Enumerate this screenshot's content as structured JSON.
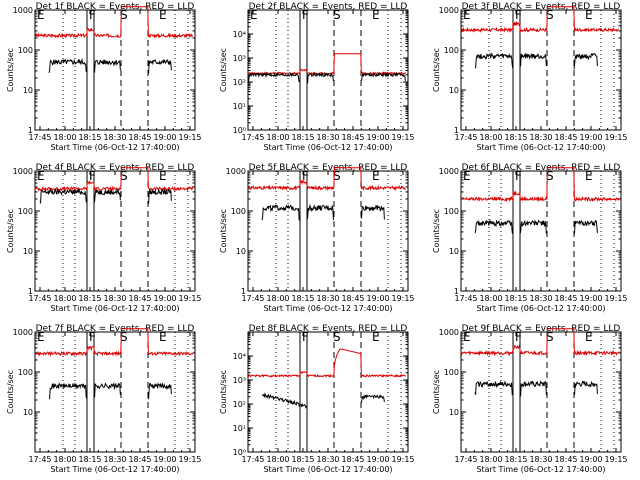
{
  "chart_data": [
    {
      "type": "line",
      "title": "Det 1f BLACK = Events, RED = LLD",
      "xlabel": "Start Time (06-Oct-12 17:40:00)",
      "ylabel": "Counts/sec",
      "y_scale": "log",
      "ylim": [
        1,
        1000
      ],
      "xlim": [
        17.7,
        19.3
      ],
      "x_tick_labels": [
        "17:45",
        "18:00",
        "18:15",
        "18:30",
        "18:45",
        "19:00",
        "19:15"
      ],
      "y_tick_labels": [
        {
          "v": 1,
          "t": "1"
        },
        {
          "v": 10,
          "t": "10"
        },
        {
          "v": 100,
          "t": "100"
        },
        {
          "v": 1000,
          "t": "1000"
        }
      ],
      "markers": [
        {
          "t": "E",
          "x": 17.7
        },
        {
          "t": "F",
          "x": 18.22
        },
        {
          "t": "S",
          "x": 18.53
        },
        {
          "t": "E",
          "x": 18.92
        }
      ],
      "red": {
        "base": 230,
        "seg": [
          [
            17.7,
            19.28
          ]
        ],
        "peak": 1300
      },
      "black": {
        "base": 50,
        "seg": [
          [
            17.84,
            18.22
          ],
          [
            18.29,
            18.56
          ],
          [
            18.83,
            19.07
          ]
        ]
      }
    },
    {
      "type": "line",
      "title": "Det 2f BLACK = Events, RED = LLD",
      "xlabel": "Start Time (06-Oct-12 17:40:00)",
      "ylabel": "Counts/sec",
      "y_scale": "log",
      "ylim": [
        1,
        100000
      ],
      "xlim": [
        17.7,
        19.3
      ],
      "x_tick_labels": [
        "17:45",
        "18:00",
        "18:15",
        "18:30",
        "18:45",
        "19:00",
        "19:15"
      ],
      "y_tick_labels": [
        {
          "v": 1,
          "t": "10⁰"
        },
        {
          "v": 10,
          "t": "10¹"
        },
        {
          "v": 100,
          "t": "10²"
        },
        {
          "v": 1000,
          "t": "10³"
        },
        {
          "v": 10000,
          "t": "10⁴"
        }
      ],
      "markers": [
        {
          "t": "E",
          "x": 17.7
        },
        {
          "t": "F",
          "x": 18.22
        },
        {
          "t": "S",
          "x": 18.53
        },
        {
          "t": "E",
          "x": 18.92
        }
      ],
      "red": {
        "base": 230,
        "seg": [
          [
            17.7,
            19.28
          ]
        ],
        "peak": 1500
      },
      "black": {
        "base": 200,
        "seg": [
          [
            17.7,
            18.22
          ],
          [
            18.29,
            18.56
          ],
          [
            18.83,
            19.28
          ]
        ]
      }
    },
    {
      "type": "line",
      "title": "Det 3f BLACK = Events, RED = LLD",
      "xlabel": "Start Time (06-Oct-12 17:40:00)",
      "ylabel": "Counts/sec",
      "y_scale": "log",
      "ylim": [
        1,
        1000
      ],
      "xlim": [
        17.7,
        19.3
      ],
      "x_tick_labels": [
        "17:45",
        "18:00",
        "18:15",
        "18:30",
        "18:45",
        "19:00",
        "19:15"
      ],
      "y_tick_labels": [
        {
          "v": 1,
          "t": "1"
        },
        {
          "v": 10,
          "t": "10"
        },
        {
          "v": 100,
          "t": "100"
        },
        {
          "v": 1000,
          "t": "1000"
        }
      ],
      "markers": [
        {
          "t": "E",
          "x": 17.7
        },
        {
          "t": "F",
          "x": 18.22
        },
        {
          "t": "S",
          "x": 18.53
        },
        {
          "t": "E",
          "x": 18.92
        }
      ],
      "red": {
        "base": 320,
        "seg": [
          [
            17.7,
            19.28
          ]
        ],
        "peak": 1300
      },
      "black": {
        "base": 70,
        "seg": [
          [
            17.84,
            18.22
          ],
          [
            18.29,
            18.56
          ],
          [
            18.83,
            19.07
          ]
        ]
      }
    },
    {
      "type": "line",
      "title": "Det 4f BLACK = Events, RED = LLD",
      "xlabel": "Start Time (06-Oct-12 17:40:00)",
      "ylabel": "Counts/sec",
      "y_scale": "log",
      "ylim": [
        1,
        1000
      ],
      "xlim": [
        17.7,
        19.3
      ],
      "x_tick_labels": [
        "17:45",
        "18:00",
        "18:15",
        "18:30",
        "18:45",
        "19:00",
        "19:15"
      ],
      "y_tick_labels": [
        {
          "v": 1,
          "t": "1"
        },
        {
          "v": 10,
          "t": "10"
        },
        {
          "v": 100,
          "t": "100"
        },
        {
          "v": 1000,
          "t": "1000"
        }
      ],
      "markers": [
        {
          "t": "E",
          "x": 17.7
        },
        {
          "t": "F",
          "x": 18.22
        },
        {
          "t": "S",
          "x": 18.53
        },
        {
          "t": "E",
          "x": 18.92
        }
      ],
      "red": {
        "base": 360,
        "seg": [
          [
            17.7,
            19.28
          ]
        ],
        "peak": 1200
      },
      "black": {
        "base": 300,
        "seg": [
          [
            17.75,
            18.22
          ],
          [
            18.29,
            18.56
          ],
          [
            18.83,
            19.07
          ]
        ]
      }
    },
    {
      "type": "line",
      "title": "Det 5f BLACK = Events, RED = LLD",
      "xlabel": "Start Time (06-Oct-12 17:40:00)",
      "ylabel": "Counts/sec",
      "y_scale": "log",
      "ylim": [
        1,
        1000
      ],
      "xlim": [
        17.7,
        19.3
      ],
      "x_tick_labels": [
        "17:45",
        "18:00",
        "18:15",
        "18:30",
        "18:45",
        "19:00",
        "19:15"
      ],
      "y_tick_labels": [
        {
          "v": 1,
          "t": "1"
        },
        {
          "v": 10,
          "t": "10"
        },
        {
          "v": 100,
          "t": "100"
        },
        {
          "v": 1000,
          "t": "1000"
        }
      ],
      "markers": [
        {
          "t": "F",
          "x": 18.22
        },
        {
          "t": "S",
          "x": 18.53
        },
        {
          "t": "E",
          "x": 18.92
        }
      ],
      "red": {
        "base": 380,
        "seg": [
          [
            17.7,
            19.28
          ]
        ],
        "peak": 1300
      },
      "black": {
        "base": 120,
        "seg": [
          [
            17.84,
            18.22
          ],
          [
            18.29,
            18.56
          ],
          [
            18.83,
            19.07
          ]
        ]
      }
    },
    {
      "type": "line",
      "title": "Det 6f BLACK = Events, RED = LLD",
      "xlabel": "Start Time (06-Oct-12 17:40:00)",
      "ylabel": "Counts/sec",
      "y_scale": "log",
      "ylim": [
        1,
        1000
      ],
      "xlim": [
        17.7,
        19.3
      ],
      "x_tick_labels": [
        "17:45",
        "18:00",
        "18:15",
        "18:30",
        "18:45",
        "19:00",
        "19:15"
      ],
      "y_tick_labels": [
        {
          "v": 1,
          "t": "1"
        },
        {
          "v": 10,
          "t": "10"
        },
        {
          "v": 100,
          "t": "100"
        },
        {
          "v": 1000,
          "t": "1000"
        }
      ],
      "markers": [
        {
          "t": "E",
          "x": 17.7
        },
        {
          "t": "F",
          "x": 18.22
        },
        {
          "t": "S",
          "x": 18.53
        },
        {
          "t": "E",
          "x": 18.92
        }
      ],
      "red": {
        "base": 200,
        "seg": [
          [
            17.7,
            19.28
          ]
        ],
        "peak": 1300
      },
      "black": {
        "base": 50,
        "seg": [
          [
            17.84,
            18.22
          ],
          [
            18.29,
            18.56
          ],
          [
            18.83,
            19.07
          ]
        ]
      }
    },
    {
      "type": "line",
      "title": "Det 7f BLACK = Events, RED = LLD",
      "xlabel": "Start Time (06-Oct-12 17:40:00)",
      "ylabel": "Counts/sec",
      "y_scale": "log",
      "ylim": [
        1,
        1000
      ],
      "xlim": [
        17.7,
        19.3
      ],
      "x_tick_labels": [
        "17:45",
        "18:00",
        "18:15",
        "18:30",
        "18:45",
        "19:00",
        "19:15"
      ],
      "y_tick_labels": [
        {
          "v": 10,
          "t": "10"
        },
        {
          "v": 100,
          "t": "100"
        },
        {
          "v": 1000,
          "t": "1000"
        }
      ],
      "markers": [
        {
          "t": "E",
          "x": 17.7
        },
        {
          "t": "F",
          "x": 18.22
        },
        {
          "t": "S",
          "x": 18.53
        },
        {
          "t": "E",
          "x": 18.92
        }
      ],
      "red": {
        "base": 290,
        "seg": [
          [
            17.7,
            19.28
          ]
        ],
        "peak": 1300
      },
      "black": {
        "base": 45,
        "seg": [
          [
            17.84,
            18.22
          ],
          [
            18.29,
            18.56
          ],
          [
            18.83,
            19.07
          ]
        ]
      }
    },
    {
      "type": "line",
      "title": "Det 8f BLACK = Events, RED = LLD",
      "xlabel": "Start Time (06-Oct-12 17:40:00)",
      "ylabel": "Counts/sec",
      "y_scale": "log",
      "ylim": [
        1,
        100000
      ],
      "xlim": [
        17.7,
        19.3
      ],
      "x_tick_labels": [
        "17:45",
        "18:00",
        "18:15",
        "18:30",
        "18:45",
        "19:00",
        "19:15"
      ],
      "y_tick_labels": [
        {
          "v": 1,
          "t": "10⁰"
        },
        {
          "v": 10,
          "t": "10¹"
        },
        {
          "v": 100,
          "t": "10²"
        },
        {
          "v": 1000,
          "t": "10³"
        },
        {
          "v": 10000,
          "t": "10⁴"
        }
      ],
      "markers": [
        {
          "t": "F",
          "x": 18.22
        },
        {
          "t": "S",
          "x": 18.53
        },
        {
          "t": "E",
          "x": 18.92
        }
      ],
      "red": {
        "base": 1500,
        "seg": [
          [
            17.7,
            19.28
          ]
        ],
        "peak": 20000
      },
      "black": {
        "base": 200,
        "seg": [
          [
            17.84,
            18.29
          ],
          [
            18.83,
            19.07
          ]
        ]
      }
    },
    {
      "type": "line",
      "title": "Det 9f BLACK = Events, RED = LLD",
      "xlabel": "Start Time (06-Oct-12 17:40:00)",
      "ylabel": "Counts/sec",
      "y_scale": "log",
      "ylim": [
        1,
        1000
      ],
      "xlim": [
        17.7,
        19.3
      ],
      "x_tick_labels": [
        "17:45",
        "18:00",
        "18:15",
        "18:30",
        "18:45",
        "19:00",
        "19:15"
      ],
      "y_tick_labels": [
        {
          "v": 10,
          "t": "10"
        },
        {
          "v": 100,
          "t": "100"
        },
        {
          "v": 1000,
          "t": "1000"
        }
      ],
      "markers": [
        {
          "t": "E",
          "x": 17.7
        },
        {
          "t": "F",
          "x": 18.22
        },
        {
          "t": "S",
          "x": 18.53
        },
        {
          "t": "E",
          "x": 18.92
        }
      ],
      "red": {
        "base": 300,
        "seg": [
          [
            17.7,
            19.28
          ]
        ],
        "peak": 1300
      },
      "black": {
        "base": 50,
        "seg": [
          [
            17.84,
            18.22
          ],
          [
            18.29,
            18.56
          ],
          [
            18.83,
            19.07
          ]
        ]
      }
    }
  ]
}
